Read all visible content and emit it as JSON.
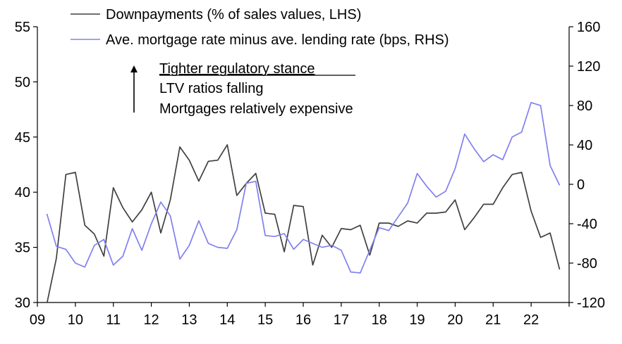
{
  "chart_data": {
    "type": "line",
    "title": "",
    "xlabel": "",
    "x_tick_labels": [
      "09",
      "10",
      "11",
      "12",
      "13",
      "14",
      "15",
      "16",
      "17",
      "18",
      "19",
      "20",
      "21",
      "22"
    ],
    "x_range": [
      2009.0,
      2023.0
    ],
    "y_left": {
      "label": "",
      "range": [
        30,
        55
      ],
      "ticks": [
        "30",
        "35",
        "40",
        "45",
        "50",
        "55"
      ]
    },
    "y_right": {
      "label": "",
      "range": [
        -120,
        160
      ],
      "ticks": [
        "-120",
        "-80",
        "-40",
        "0",
        "40",
        "80",
        "120",
        "160"
      ]
    },
    "grid": false,
    "legend_position": "top-left",
    "series": [
      {
        "name": "Downpayments (% of sales values, LHS)",
        "axis": "left",
        "color": "#404040",
        "x": [
          2009.0,
          2009.25,
          2009.5,
          2009.75,
          2010.0,
          2010.25,
          2010.5,
          2010.75,
          2011.0,
          2011.25,
          2011.5,
          2011.75,
          2012.0,
          2012.25,
          2012.5,
          2012.75,
          2013.0,
          2013.25,
          2013.5,
          2013.75,
          2014.0,
          2014.25,
          2014.5,
          2014.75,
          2015.0,
          2015.25,
          2015.5,
          2015.75,
          2016.0,
          2016.25,
          2016.5,
          2016.75,
          2017.0,
          2017.25,
          2017.5,
          2017.75,
          2018.0,
          2018.25,
          2018.5,
          2018.75,
          2019.0,
          2019.25,
          2019.5,
          2019.75,
          2020.0,
          2020.25,
          2020.5,
          2020.75,
          2021.0,
          2021.25,
          2021.5,
          2021.75,
          2022.0,
          2022.25,
          2022.5,
          2022.75
        ],
        "values": [
          29.2,
          29.9,
          34.0,
          41.6,
          41.8,
          37.0,
          36.2,
          34.2,
          40.4,
          38.6,
          37.3,
          38.4,
          40.0,
          36.3,
          39.3,
          44.1,
          42.9,
          41.0,
          42.8,
          42.9,
          44.3,
          39.7,
          40.8,
          41.7,
          38.1,
          38.0,
          34.6,
          38.8,
          38.7,
          33.4,
          36.1,
          35.0,
          36.7,
          36.6,
          37.0,
          34.3,
          37.2,
          37.2,
          36.9,
          37.4,
          37.2,
          38.1,
          38.1,
          38.2,
          39.3,
          36.6,
          37.7,
          38.9,
          38.9,
          40.4,
          41.6,
          41.8,
          38.3,
          35.9,
          36.3,
          33.0
        ]
      },
      {
        "name": "Ave. mortgage rate minus ave. lending rate (bps, RHS)",
        "axis": "right",
        "color": "#8080f0",
        "x": [
          2009.25,
          2009.5,
          2009.75,
          2010.0,
          2010.25,
          2010.5,
          2010.75,
          2011.0,
          2011.25,
          2011.5,
          2011.75,
          2012.0,
          2012.25,
          2012.5,
          2012.75,
          2013.0,
          2013.25,
          2013.5,
          2013.75,
          2014.0,
          2014.25,
          2014.5,
          2014.75,
          2015.0,
          2015.25,
          2015.5,
          2015.75,
          2016.0,
          2016.25,
          2016.5,
          2016.75,
          2017.0,
          2017.25,
          2017.5,
          2017.75,
          2018.0,
          2018.25,
          2018.5,
          2018.75,
          2019.0,
          2019.25,
          2019.5,
          2019.75,
          2020.0,
          2020.25,
          2020.5,
          2020.75,
          2021.0,
          2021.25,
          2021.5,
          2021.75,
          2022.0,
          2022.25,
          2022.5,
          2022.75
        ],
        "values": [
          -30,
          -63,
          -66,
          -80,
          -84,
          -62,
          -56,
          -82,
          -73,
          -45,
          -67,
          -40,
          -18,
          -32,
          -76,
          -62,
          -37,
          -60,
          -64,
          -65,
          -46,
          1,
          3,
          -52,
          -53,
          -50,
          -66,
          -56,
          -60,
          -64,
          -62,
          -67,
          -89,
          -90,
          -67,
          -44,
          -47,
          -33,
          -19,
          11,
          -2,
          -13,
          -7,
          16,
          51,
          36,
          23,
          30,
          25,
          48,
          53,
          83,
          80,
          19,
          -1
        ]
      }
    ],
    "annotations": {
      "line1": "Tighter regulatory stance",
      "line2": "LTV ratios falling",
      "line3": "Mortgages relatively expensive",
      "arrow": "up-arrow"
    }
  }
}
